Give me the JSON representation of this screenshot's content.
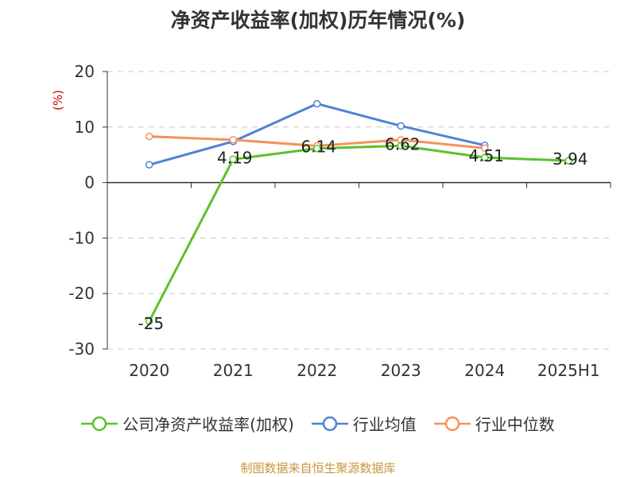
{
  "title": "净资产收益率(加权)历年情况(%)",
  "source": "制图数据来自恒生聚源数据库",
  "source_color": "#c8963c",
  "chart_data": {
    "type": "line",
    "categories": [
      "2020",
      "2021",
      "2022",
      "2023",
      "2024",
      "2025H1"
    ],
    "ylabel": "(%)",
    "ylabel_color": "#cc0000",
    "ylim": [
      -30,
      20
    ],
    "yticks": [
      20,
      10,
      0,
      -10,
      -20,
      -30
    ],
    "grid": true,
    "legend_position": "bottom",
    "series": [
      {
        "name": "公司净资产收益率(加权)",
        "color": "#5cc12b",
        "values": [
          -25,
          4.19,
          6.14,
          6.62,
          4.51,
          3.94
        ],
        "labels": [
          "-25",
          "4.19",
          "6.14",
          "6.62",
          "4.51",
          "3.94"
        ]
      },
      {
        "name": "行业均值",
        "color": "#4f81d9",
        "values": [
          3.2,
          7.4,
          14.2,
          10.2,
          6.7,
          null
        ]
      },
      {
        "name": "行业中位数",
        "color": "#f5925a",
        "values": [
          8.3,
          7.7,
          6.6,
          7.7,
          6.2,
          null
        ]
      }
    ]
  }
}
